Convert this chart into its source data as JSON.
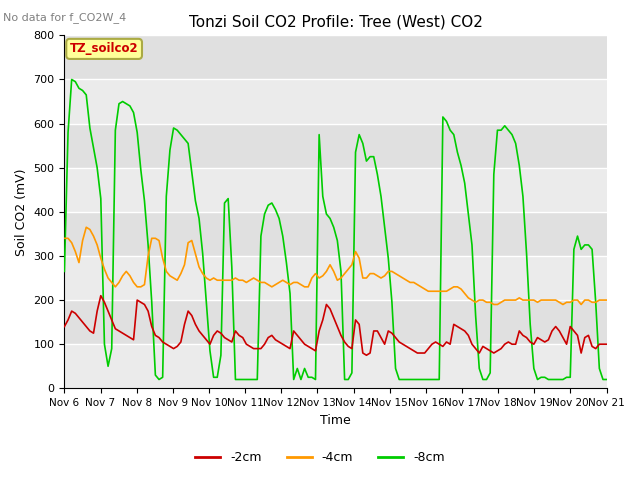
{
  "title": "Tonzi Soil CO2 Profile: Tree (West) CO2",
  "no_data_text": "No data for f_CO2W_4",
  "ylabel": "Soil CO2 (mV)",
  "xlabel": "Time",
  "ylim": [
    0,
    800
  ],
  "x_tick_labels": [
    "Nov 6",
    "Nov 7",
    "Nov 8",
    "Nov 9",
    "Nov 10",
    "Nov 11",
    "Nov 12",
    "Nov 13",
    "Nov 14",
    "Nov 15",
    "Nov 16",
    "Nov 17",
    "Nov 18",
    "Nov 19",
    "Nov 20",
    "Nov 21"
  ],
  "legend_box_label": "TZ_soilco2",
  "legend_box_facecolor": "#FFFF99",
  "legend_box_edgecolor": "#AAAA44",
  "line_labels": [
    "-2cm",
    "-4cm",
    "-8cm"
  ],
  "line_colors": [
    "#CC0000",
    "#FF9900",
    "#00CC00"
  ],
  "bg_color": "#FFFFFF",
  "plot_bg_color": "#EEEEEE",
  "band_colors": [
    "#EBEBEB",
    "#E0E0E0"
  ],
  "series_2cm": [
    140,
    155,
    175,
    170,
    160,
    150,
    140,
    130,
    125,
    175,
    210,
    195,
    175,
    155,
    135,
    130,
    125,
    120,
    115,
    110,
    200,
    195,
    190,
    175,
    140,
    120,
    115,
    105,
    100,
    95,
    90,
    95,
    105,
    145,
    175,
    165,
    145,
    130,
    120,
    110,
    100,
    120,
    130,
    125,
    115,
    110,
    105,
    130,
    120,
    115,
    100,
    95,
    90,
    90,
    90,
    100,
    115,
    120,
    110,
    105,
    100,
    95,
    90,
    130,
    120,
    110,
    100,
    95,
    90,
    85,
    130,
    155,
    190,
    180,
    160,
    140,
    120,
    105,
    95,
    90,
    155,
    145,
    80,
    75,
    80,
    130,
    130,
    115,
    100,
    130,
    125,
    115,
    105,
    100,
    95,
    90,
    85,
    80,
    80,
    80,
    90,
    100,
    105,
    100,
    95,
    105,
    100,
    145,
    140,
    135,
    130,
    120,
    100,
    90,
    80,
    95,
    90,
    85,
    80,
    85,
    90,
    100,
    105,
    100,
    100,
    130,
    120,
    115,
    105,
    100,
    115,
    110,
    105,
    110,
    130,
    140,
    130,
    115,
    100,
    140,
    130,
    120,
    80,
    115,
    120,
    95,
    90,
    100,
    100,
    100
  ],
  "series_4cm": [
    340,
    340,
    330,
    310,
    285,
    335,
    365,
    360,
    345,
    325,
    295,
    270,
    250,
    240,
    230,
    240,
    255,
    265,
    255,
    240,
    230,
    230,
    235,
    300,
    340,
    340,
    335,
    295,
    265,
    255,
    250,
    245,
    260,
    280,
    330,
    335,
    305,
    275,
    260,
    250,
    245,
    250,
    245,
    245,
    245,
    245,
    245,
    250,
    245,
    245,
    240,
    245,
    250,
    245,
    240,
    240,
    235,
    230,
    235,
    240,
    245,
    240,
    235,
    240,
    240,
    235,
    230,
    230,
    250,
    260,
    250,
    255,
    265,
    280,
    265,
    245,
    250,
    260,
    270,
    280,
    310,
    295,
    250,
    250,
    260,
    260,
    255,
    250,
    255,
    265,
    265,
    260,
    255,
    250,
    245,
    240,
    240,
    235,
    230,
    225,
    220,
    220,
    220,
    220,
    220,
    220,
    225,
    230,
    230,
    225,
    215,
    205,
    200,
    195,
    200,
    200,
    195,
    195,
    190,
    190,
    195,
    200,
    200,
    200,
    200,
    205,
    200,
    200,
    200,
    200,
    195,
    200,
    200,
    200,
    200,
    200,
    195,
    190,
    195,
    195,
    200,
    200,
    190,
    200,
    200,
    195,
    195,
    200,
    200,
    200
  ],
  "series_8cm": [
    265,
    580,
    700,
    695,
    680,
    675,
    665,
    590,
    545,
    500,
    430,
    100,
    50,
    90,
    585,
    645,
    650,
    645,
    640,
    625,
    580,
    495,
    425,
    325,
    195,
    30,
    20,
    25,
    435,
    540,
    590,
    585,
    575,
    565,
    555,
    490,
    425,
    385,
    305,
    195,
    85,
    25,
    25,
    75,
    420,
    430,
    275,
    20,
    20,
    20,
    20,
    20,
    20,
    20,
    345,
    395,
    415,
    420,
    405,
    385,
    345,
    285,
    215,
    20,
    45,
    20,
    45,
    25,
    25,
    20,
    575,
    435,
    395,
    385,
    365,
    335,
    265,
    20,
    20,
    35,
    535,
    575,
    555,
    515,
    525,
    525,
    485,
    435,
    365,
    295,
    195,
    45,
    20,
    20,
    20,
    20,
    20,
    20,
    20,
    20,
    20,
    20,
    20,
    20,
    615,
    605,
    585,
    575,
    535,
    505,
    465,
    395,
    325,
    165,
    45,
    20,
    20,
    35,
    485,
    585,
    585,
    595,
    585,
    575,
    555,
    505,
    435,
    305,
    145,
    45,
    20,
    25,
    25,
    20,
    20,
    20,
    20,
    20,
    25,
    25,
    315,
    345,
    315,
    325,
    325,
    315,
    195,
    45,
    20,
    20
  ]
}
